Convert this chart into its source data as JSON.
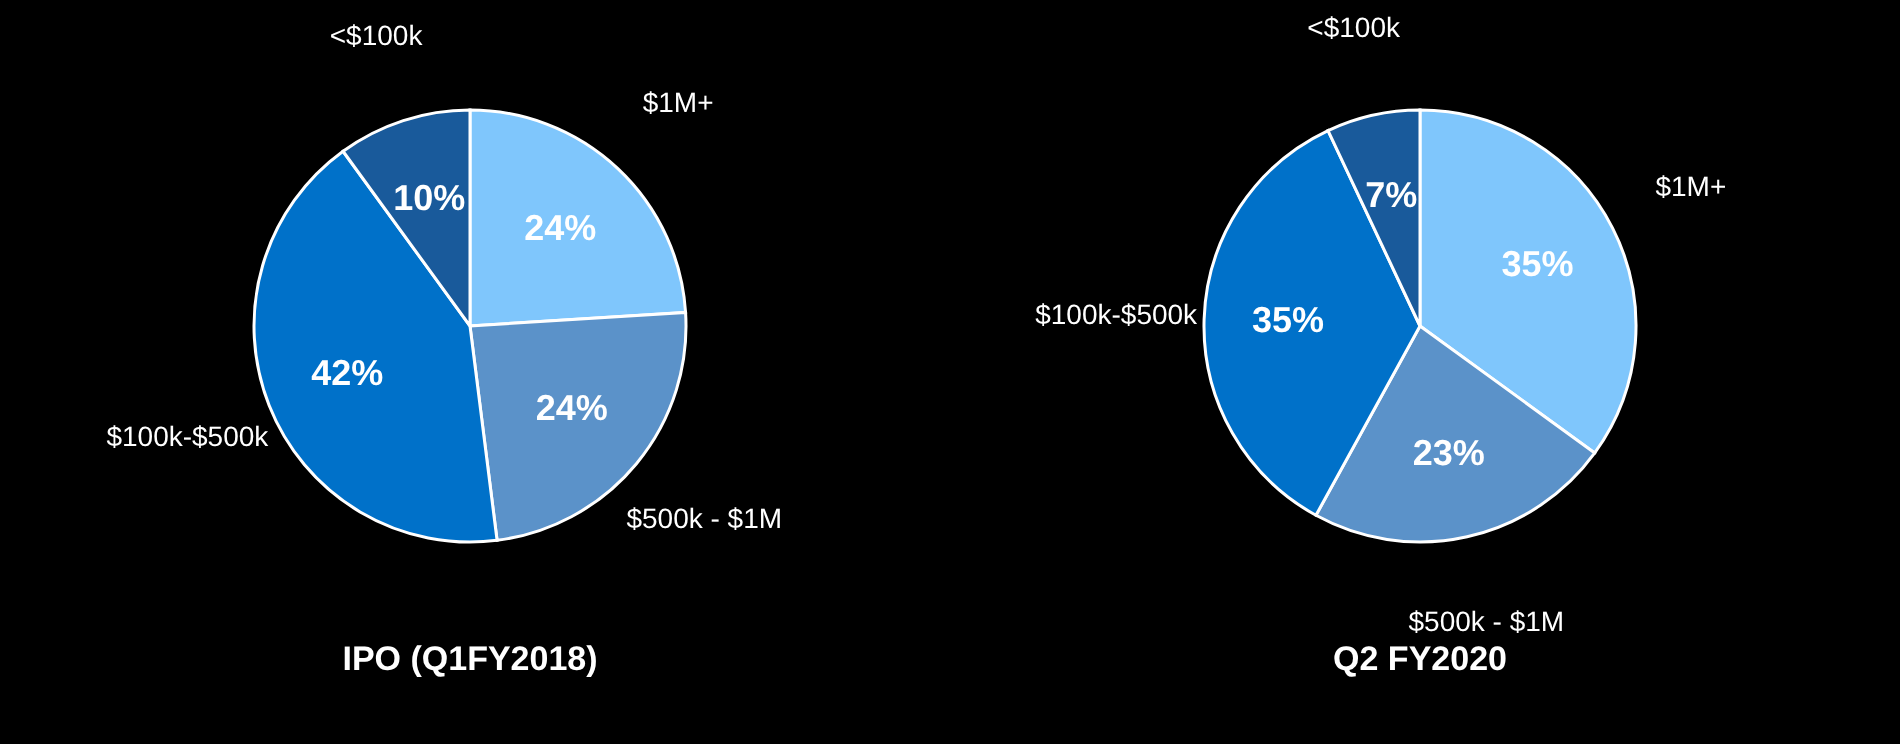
{
  "chart_data": [
    {
      "type": "pie",
      "title": "IPO (Q1FY2018)",
      "categories": [
        "$1M+",
        "$500k - $1M",
        "$100k-$500k",
        "<$100k"
      ],
      "values": [
        24,
        24,
        42,
        10
      ],
      "colors": [
        "#7fc6fc",
        "#5b92c9",
        "#0071c9",
        "#195a9b"
      ],
      "value_labels": [
        "24%",
        "24%",
        "42%",
        "10%"
      ],
      "legend": false
    },
    {
      "type": "pie",
      "title": "Q2 FY2020",
      "categories": [
        "$1M+",
        "$500k - $1M",
        "$100k-$500k",
        "<$100k"
      ],
      "values": [
        35,
        23,
        35,
        7
      ],
      "colors": [
        "#7fc6fc",
        "#5b92c9",
        "#0071c9",
        "#195a9b"
      ],
      "value_labels": [
        "35%",
        "23%",
        "35%",
        "7%"
      ],
      "legend": false
    }
  ]
}
